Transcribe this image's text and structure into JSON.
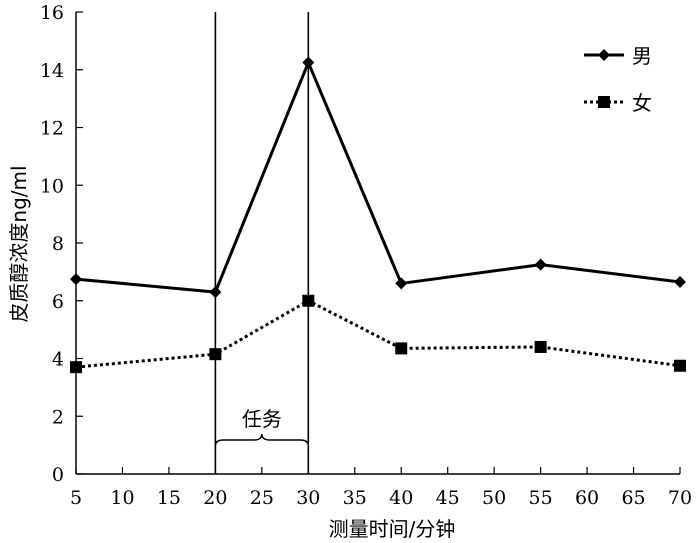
{
  "chart_data": {
    "type": "line",
    "x": [
      5,
      20,
      30,
      40,
      55,
      70
    ],
    "series": [
      {
        "name": "男",
        "values": [
          6.75,
          6.3,
          14.25,
          6.6,
          7.25,
          6.65
        ],
        "line": "solid",
        "marker": "diamond",
        "color": "#000000"
      },
      {
        "name": "女",
        "values": [
          3.7,
          4.15,
          6.0,
          4.35,
          4.4,
          3.75
        ],
        "line": "dotted",
        "marker": "square",
        "color": "#000000"
      }
    ],
    "xticks": [
      "5",
      "10",
      "15",
      "20",
      "25",
      "30",
      "35",
      "40",
      "45",
      "50",
      "55",
      "60",
      "65",
      "70"
    ],
    "yticks": [
      "0",
      "2",
      "4",
      "6",
      "8",
      "10",
      "12",
      "14",
      "16"
    ],
    "xlim": [
      5,
      70
    ],
    "ylim": [
      0,
      16
    ],
    "xlabel": "测量时间/分钟",
    "ylabel": "皮质醇浓度ng/ml",
    "title": "",
    "grid": false,
    "legend_position": "top-right",
    "annotation": {
      "label": "任务",
      "x_start": 20,
      "x_end": 30
    }
  }
}
